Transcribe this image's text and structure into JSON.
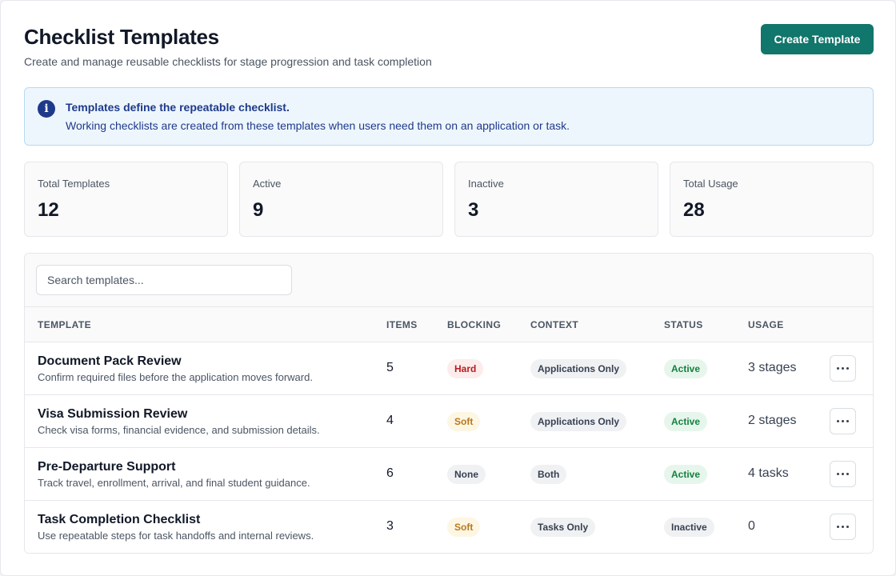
{
  "header": {
    "title": "Checklist Templates",
    "subtitle": "Create and manage reusable checklists for stage progression and task completion",
    "create_label": "Create Template"
  },
  "banner": {
    "icon": "info-icon",
    "icon_glyph": "i",
    "title": "Templates define the repeatable checklist.",
    "body": "Working checklists are created from these templates when users need them on an application or task."
  },
  "stats": [
    {
      "label": "Total Templates",
      "value": "12"
    },
    {
      "label": "Active",
      "value": "9"
    },
    {
      "label": "Inactive",
      "value": "3"
    },
    {
      "label": "Total Usage",
      "value": "28"
    }
  ],
  "search": {
    "placeholder": "Search templates...",
    "value": ""
  },
  "table": {
    "columns": [
      "TEMPLATE",
      "ITEMS",
      "BLOCKING",
      "CONTEXT",
      "STATUS",
      "USAGE"
    ],
    "rows": [
      {
        "name": "Document Pack Review",
        "description": "Confirm required files before the application moves forward.",
        "items": "5",
        "blocking": "Hard",
        "context": "Applications Only",
        "status": "Active",
        "usage": "3 stages"
      },
      {
        "name": "Visa Submission Review",
        "description": "Check visa forms, financial evidence, and submission details.",
        "items": "4",
        "blocking": "Soft",
        "context": "Applications Only",
        "status": "Active",
        "usage": "2 stages"
      },
      {
        "name": "Pre-Departure Support",
        "description": "Track travel, enrollment, arrival, and final student guidance.",
        "items": "6",
        "blocking": "None",
        "context": "Both",
        "status": "Active",
        "usage": "4 tasks"
      },
      {
        "name": "Task Completion Checklist",
        "description": "Use repeatable steps for task handoffs and internal reviews.",
        "items": "3",
        "blocking": "Soft",
        "context": "Tasks Only",
        "status": "Inactive",
        "usage": "0"
      }
    ]
  },
  "colors": {
    "primary": "#11766b",
    "info_bg": "#eef6fd",
    "info_text": "#1e3a8a",
    "hard": "#b91c1c",
    "soft": "#b7791f",
    "active": "#15803d"
  }
}
